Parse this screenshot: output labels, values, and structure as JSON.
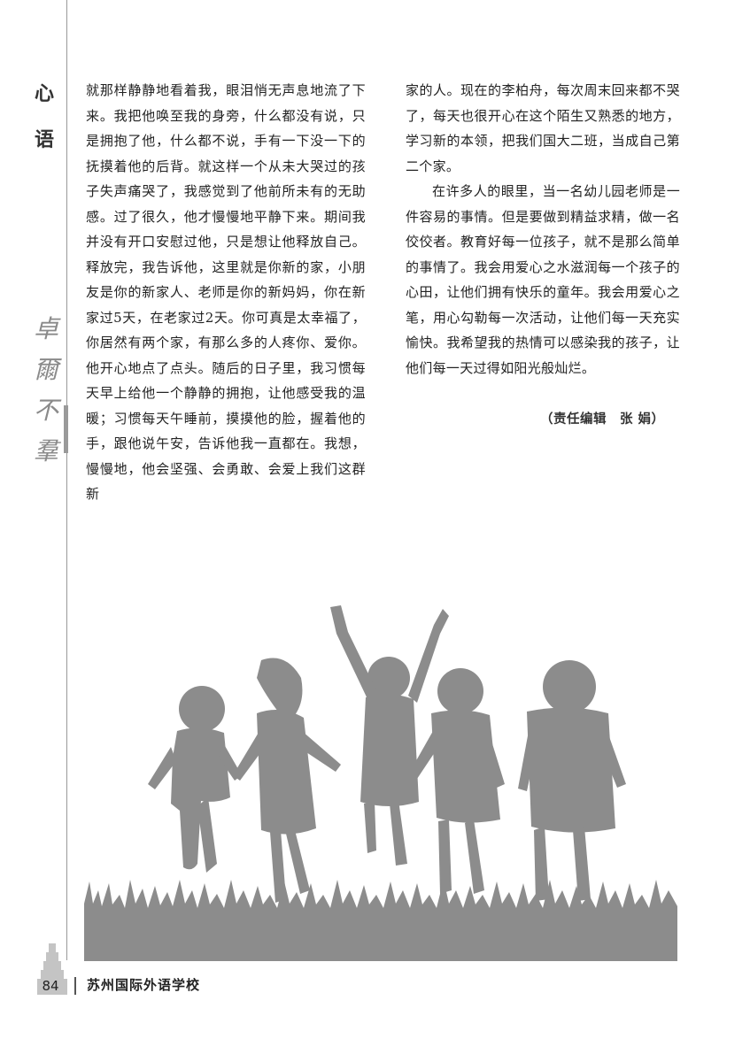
{
  "section": {
    "label_1": "心",
    "label_2": "语",
    "deco_1": "卓",
    "deco_2": "爾",
    "deco_3": "不",
    "deco_4": "羣"
  },
  "article": {
    "left_column": "就那样静静地看着我，眼泪悄无声息地流了下来。我把他唤至我的身旁，什么都没有说，只是拥抱了他，什么都不说，手有一下没一下的抚摸着他的后背。就这样一个从未大哭过的孩子失声痛哭了，我感觉到了他前所未有的无助感。过了很久，他才慢慢地平静下来。期间我并没有开口安慰过他，只是想让他释放自己。释放完，我告诉他，这里就是你新的家，小朋友是你的新家人、老师是你的新妈妈，你在新家过5天，在老家过2天。你可真是太幸福了，你居然有两个家，有那么多的人疼你、爱你。他开心地点了点头。随后的日子里，我习惯每天早上给他一个静静的拥抱，让他感受我的温暖；习惯每天午睡前，摸摸他的脸，握着他的手，跟他说午安，告诉他我一直都在。我想，慢慢地，他会坚强、会勇敢、会爱上我们这群新",
    "right_para_1": "家的人。现在的李柏舟，每次周末回来都不哭了，每天也很开心在这个陌生又熟悉的地方，学习新的本领，把我们国大二班，当成自己第二个家。",
    "right_para_2": "在许多人的眼里，当一名幼儿园老师是一件容易的事情。但是要做到精益求精，做一名佼佼者。教育好每一位孩子，就不是那么简单的事情了。我会用爱心之水滋润每一个孩子的心田，让他们拥有快乐的童年。我会用爱心之笔，用心勾勒每一次活动，让他们每一天充实愉快。我希望我的热情可以感染我的孩子，让他们每一天过得如阳光般灿烂。",
    "editor": "（责任编辑　张 娟）"
  },
  "footer": {
    "page_number": "84",
    "school": "苏州国际外语学校"
  },
  "colors": {
    "silhouette": "#8c8c8c",
    "text": "#222222"
  }
}
